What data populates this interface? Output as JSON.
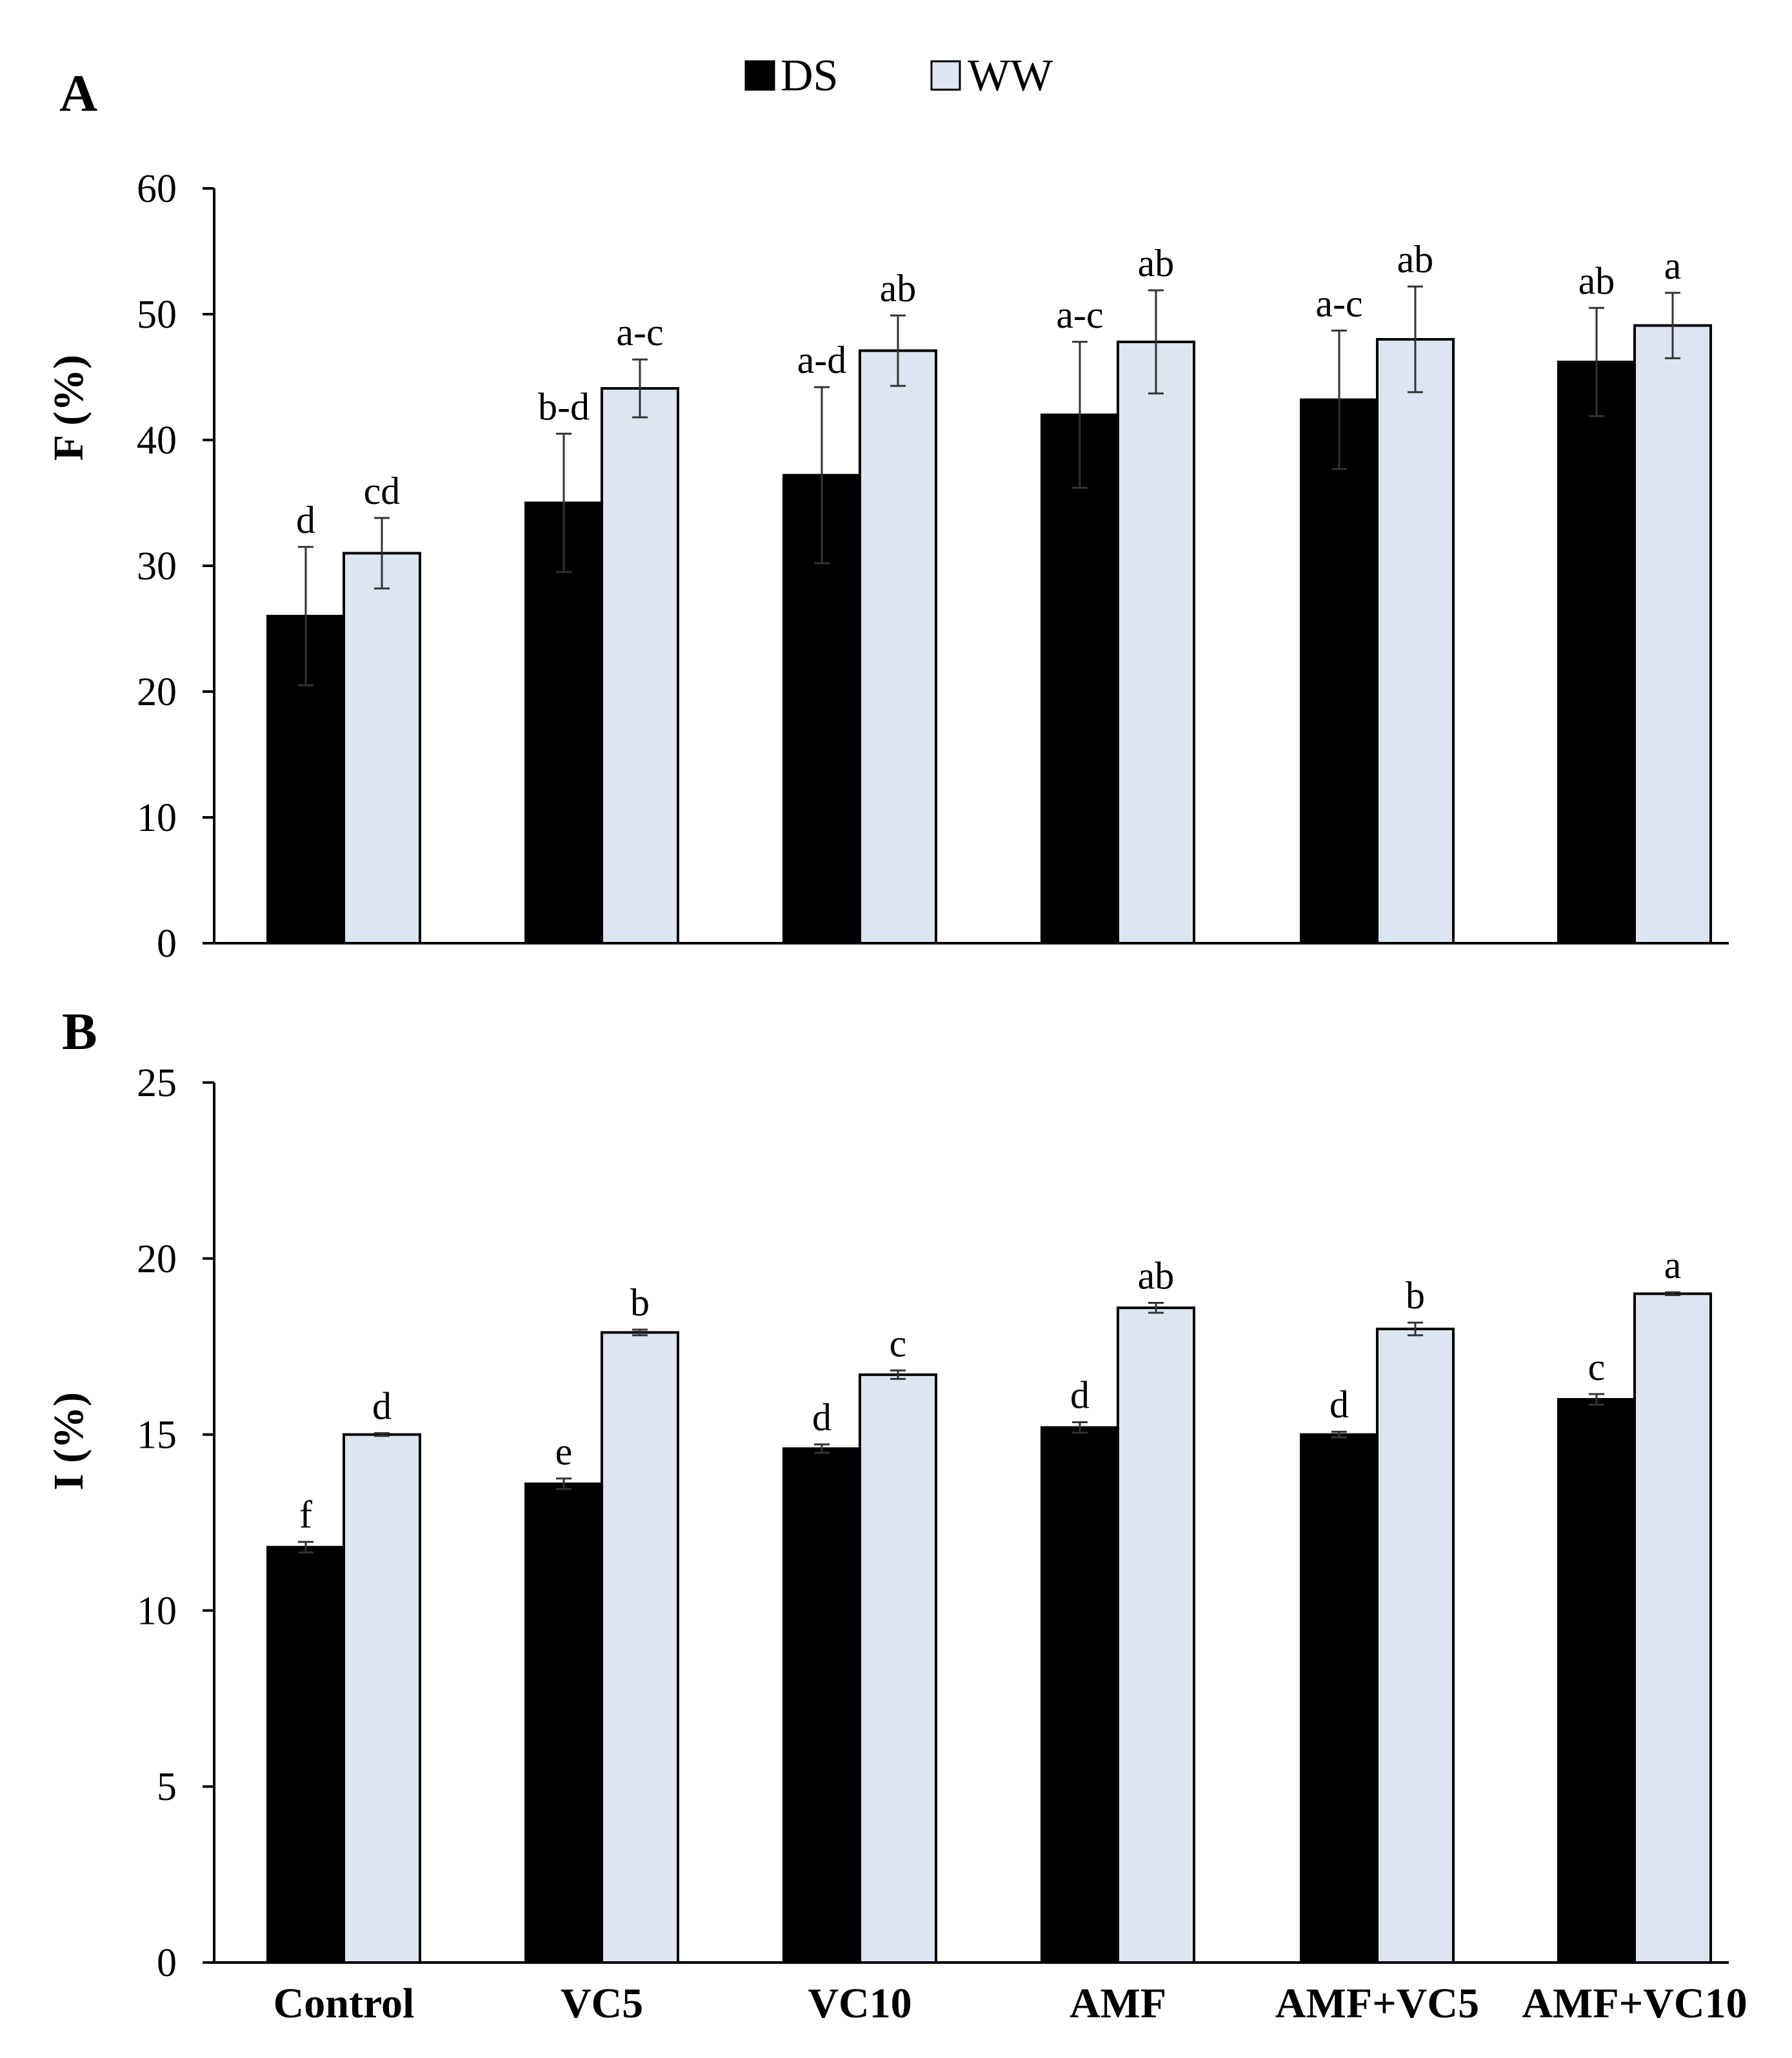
{
  "legend": {
    "series": [
      {
        "name": "DS",
        "color": "#000000"
      },
      {
        "name": "WW",
        "color": "#dce6f2"
      }
    ]
  },
  "categories": [
    "Control",
    "VC5",
    "VC10",
    "AMF",
    "AMF+VC5",
    "AMF+VC10"
  ],
  "chart_data": [
    {
      "type": "bar",
      "panel": "A",
      "ylabel": "F (%)",
      "ylim": [
        0,
        60
      ],
      "yticks": [
        0,
        10,
        20,
        30,
        40,
        50,
        60
      ],
      "categories": [
        "Control",
        "VC5",
        "VC10",
        "AMF",
        "AMF+VC5",
        "AMF+VC10"
      ],
      "series": [
        {
          "name": "DS",
          "values": [
            26.0,
            35.0,
            37.2,
            42.0,
            43.2,
            46.2
          ],
          "errors": [
            5.5,
            5.5,
            7.0,
            5.8,
            5.5,
            4.3
          ],
          "letters": [
            "d",
            "b-d",
            "a-d",
            "a-c",
            "a-c",
            "ab"
          ]
        },
        {
          "name": "WW",
          "values": [
            31.0,
            44.1,
            47.1,
            47.8,
            48.0,
            49.1
          ],
          "errors": [
            2.8,
            2.3,
            2.8,
            4.1,
            4.2,
            2.6
          ],
          "letters": [
            "cd",
            "a-c",
            "ab",
            "ab",
            "ab",
            "a"
          ]
        }
      ]
    },
    {
      "type": "bar",
      "panel": "B",
      "ylabel": "I (%)",
      "ylim": [
        0,
        25
      ],
      "yticks": [
        0,
        5,
        10,
        15,
        20,
        25
      ],
      "categories": [
        "Control",
        "VC5",
        "VC10",
        "AMF",
        "AMF+VC5",
        "AMF+VC10"
      ],
      "series": [
        {
          "name": "DS",
          "values": [
            11.8,
            13.6,
            14.6,
            15.2,
            15.0,
            16.0
          ],
          "errors": [
            0.15,
            0.15,
            0.12,
            0.15,
            0.08,
            0.15
          ],
          "letters": [
            "f",
            "e",
            "d",
            "d",
            "d",
            "c"
          ]
        },
        {
          "name": "WW",
          "values": [
            15.0,
            17.9,
            16.7,
            18.6,
            18.0,
            19.0
          ],
          "errors": [
            0.04,
            0.08,
            0.12,
            0.14,
            0.18,
            0.04
          ],
          "letters": [
            "d",
            "b",
            "c",
            "ab",
            "b",
            "a"
          ]
        }
      ]
    }
  ]
}
